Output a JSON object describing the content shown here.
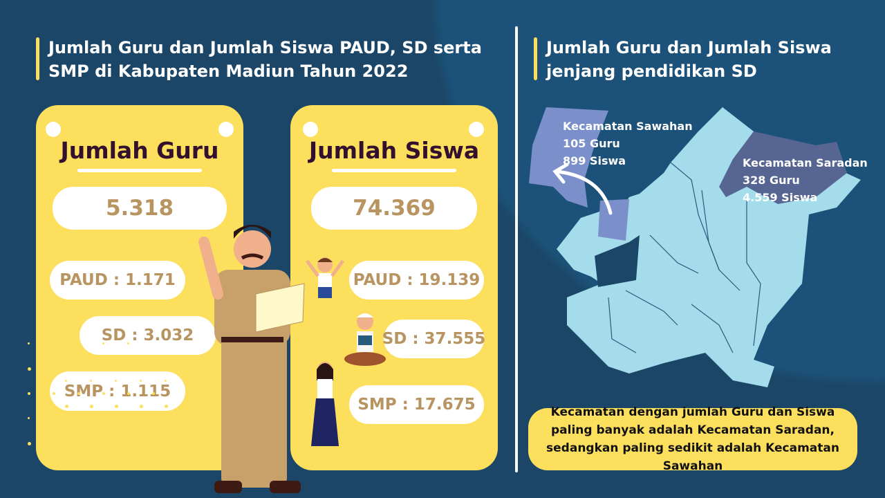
{
  "left": {
    "title": "Jumlah Guru dan Jumlah Siswa PAUD, SD serta SMP di Kabupaten Madiun Tahun 2022",
    "guru_card": {
      "heading": "Jumlah Guru",
      "total": "5.318",
      "paud": "PAUD : 1.171",
      "sd": "SD : 3.032",
      "smp": "SMP : 1.115"
    },
    "siswa_card": {
      "heading": "Jumlah Siswa",
      "total": "74.369",
      "paud": "PAUD : 19.139",
      "sd": "SD : 37.555",
      "smp": "SMP : 17.675"
    }
  },
  "right": {
    "title": "Jumlah Guru dan Jumlah Siswa jenjang pendidikan SD",
    "sawahan": {
      "name": "Kecamatan Sawahan",
      "guru": "105 Guru",
      "siswa": "899 Siswa",
      "color": "#7b90cb"
    },
    "saradan": {
      "name": "Kecamatan Saradan",
      "guru": "328 Guru",
      "siswa": "4.559 Siswa",
      "color": "#566592"
    },
    "map_color": "#a5dcec",
    "note": "Kecamatan dengan jumlah Guru dan Siswa paling banyak adalah Kecamatan Saradan, sedangkan paling sedikit adalah Kecamatan Sawahan"
  },
  "colors": {
    "background": "#1b4668",
    "accent": "#fddf5e",
    "value_text": "#b79460"
  }
}
